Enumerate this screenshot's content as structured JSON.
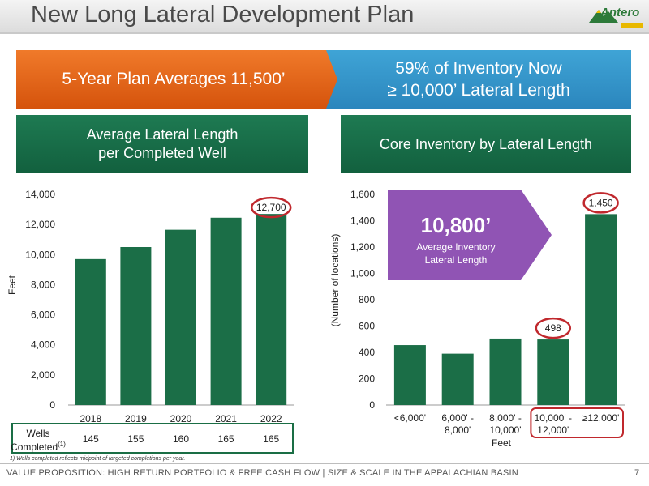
{
  "title": "New Long Lateral Development Plan",
  "logo": {
    "text": "Antero",
    "icon": "mountain-logo-icon"
  },
  "banners": {
    "left": "5-Year Plan Averages 11,500’",
    "right_line1": "59% of Inventory Now",
    "right_line2": "≥ 10,000’ Lateral Length"
  },
  "left_header": {
    "line1": "Average Lateral Length",
    "line2": "per Completed Well"
  },
  "right_header": {
    "line1": "Core Inventory by Lateral Length"
  },
  "wells": {
    "label_line1": "Wells",
    "label_line2": "Completed",
    "label_sup": "(1)",
    "values": [
      "145",
      "155",
      "160",
      "165",
      "165"
    ]
  },
  "callout": {
    "value": "10,800’",
    "line1": "Average Inventory",
    "line2": "Lateral Length"
  },
  "colors": {
    "bar": "#1b6e47",
    "highlight": "#c0282d",
    "orange": "#e2621b",
    "blue": "#3296cb",
    "purple": "#8a4bb0"
  },
  "chart_data": [
    {
      "type": "bar",
      "categories": [
        "2018",
        "2019",
        "2020",
        "2021",
        "2022"
      ],
      "values": [
        9700,
        10500,
        11650,
        12450,
        12700
      ],
      "ylabel": "Feet",
      "ylim": [
        0,
        14000
      ],
      "yticks": [
        "0",
        "2,000",
        "4,000",
        "6,000",
        "8,000",
        "10,000",
        "12,000",
        "14,000"
      ],
      "data_labels": [
        {
          "index": 4,
          "text": "12,700"
        }
      ],
      "grid": false
    },
    {
      "type": "bar",
      "categories": [
        "<6,000'",
        "6,000' - 8,000'",
        "8,000' - 10,000'",
        "10,000' - 12,000'",
        "≥12,000'"
      ],
      "values": [
        455,
        390,
        505,
        498,
        1450
      ],
      "xlabel": "Feet",
      "ylabel": "(Number of locations)",
      "ylim": [
        0,
        1600
      ],
      "yticks": [
        "0",
        "200",
        "400",
        "600",
        "800",
        "1,000",
        "1,200",
        "1,400",
        "1,600"
      ],
      "data_labels": [
        {
          "index": 3,
          "text": "498"
        },
        {
          "index": 4,
          "text": "1,450"
        }
      ],
      "grid": false
    }
  ],
  "footnote": "1)  Wells completed reflects midpoint of targeted completions per year.",
  "footer": "VALUE PROPOSITION: HIGH RETURN PORTFOLIO & FREE CASH FLOW | SIZE & SCALE IN THE APPALACHIAN BASIN",
  "page_number": "7"
}
